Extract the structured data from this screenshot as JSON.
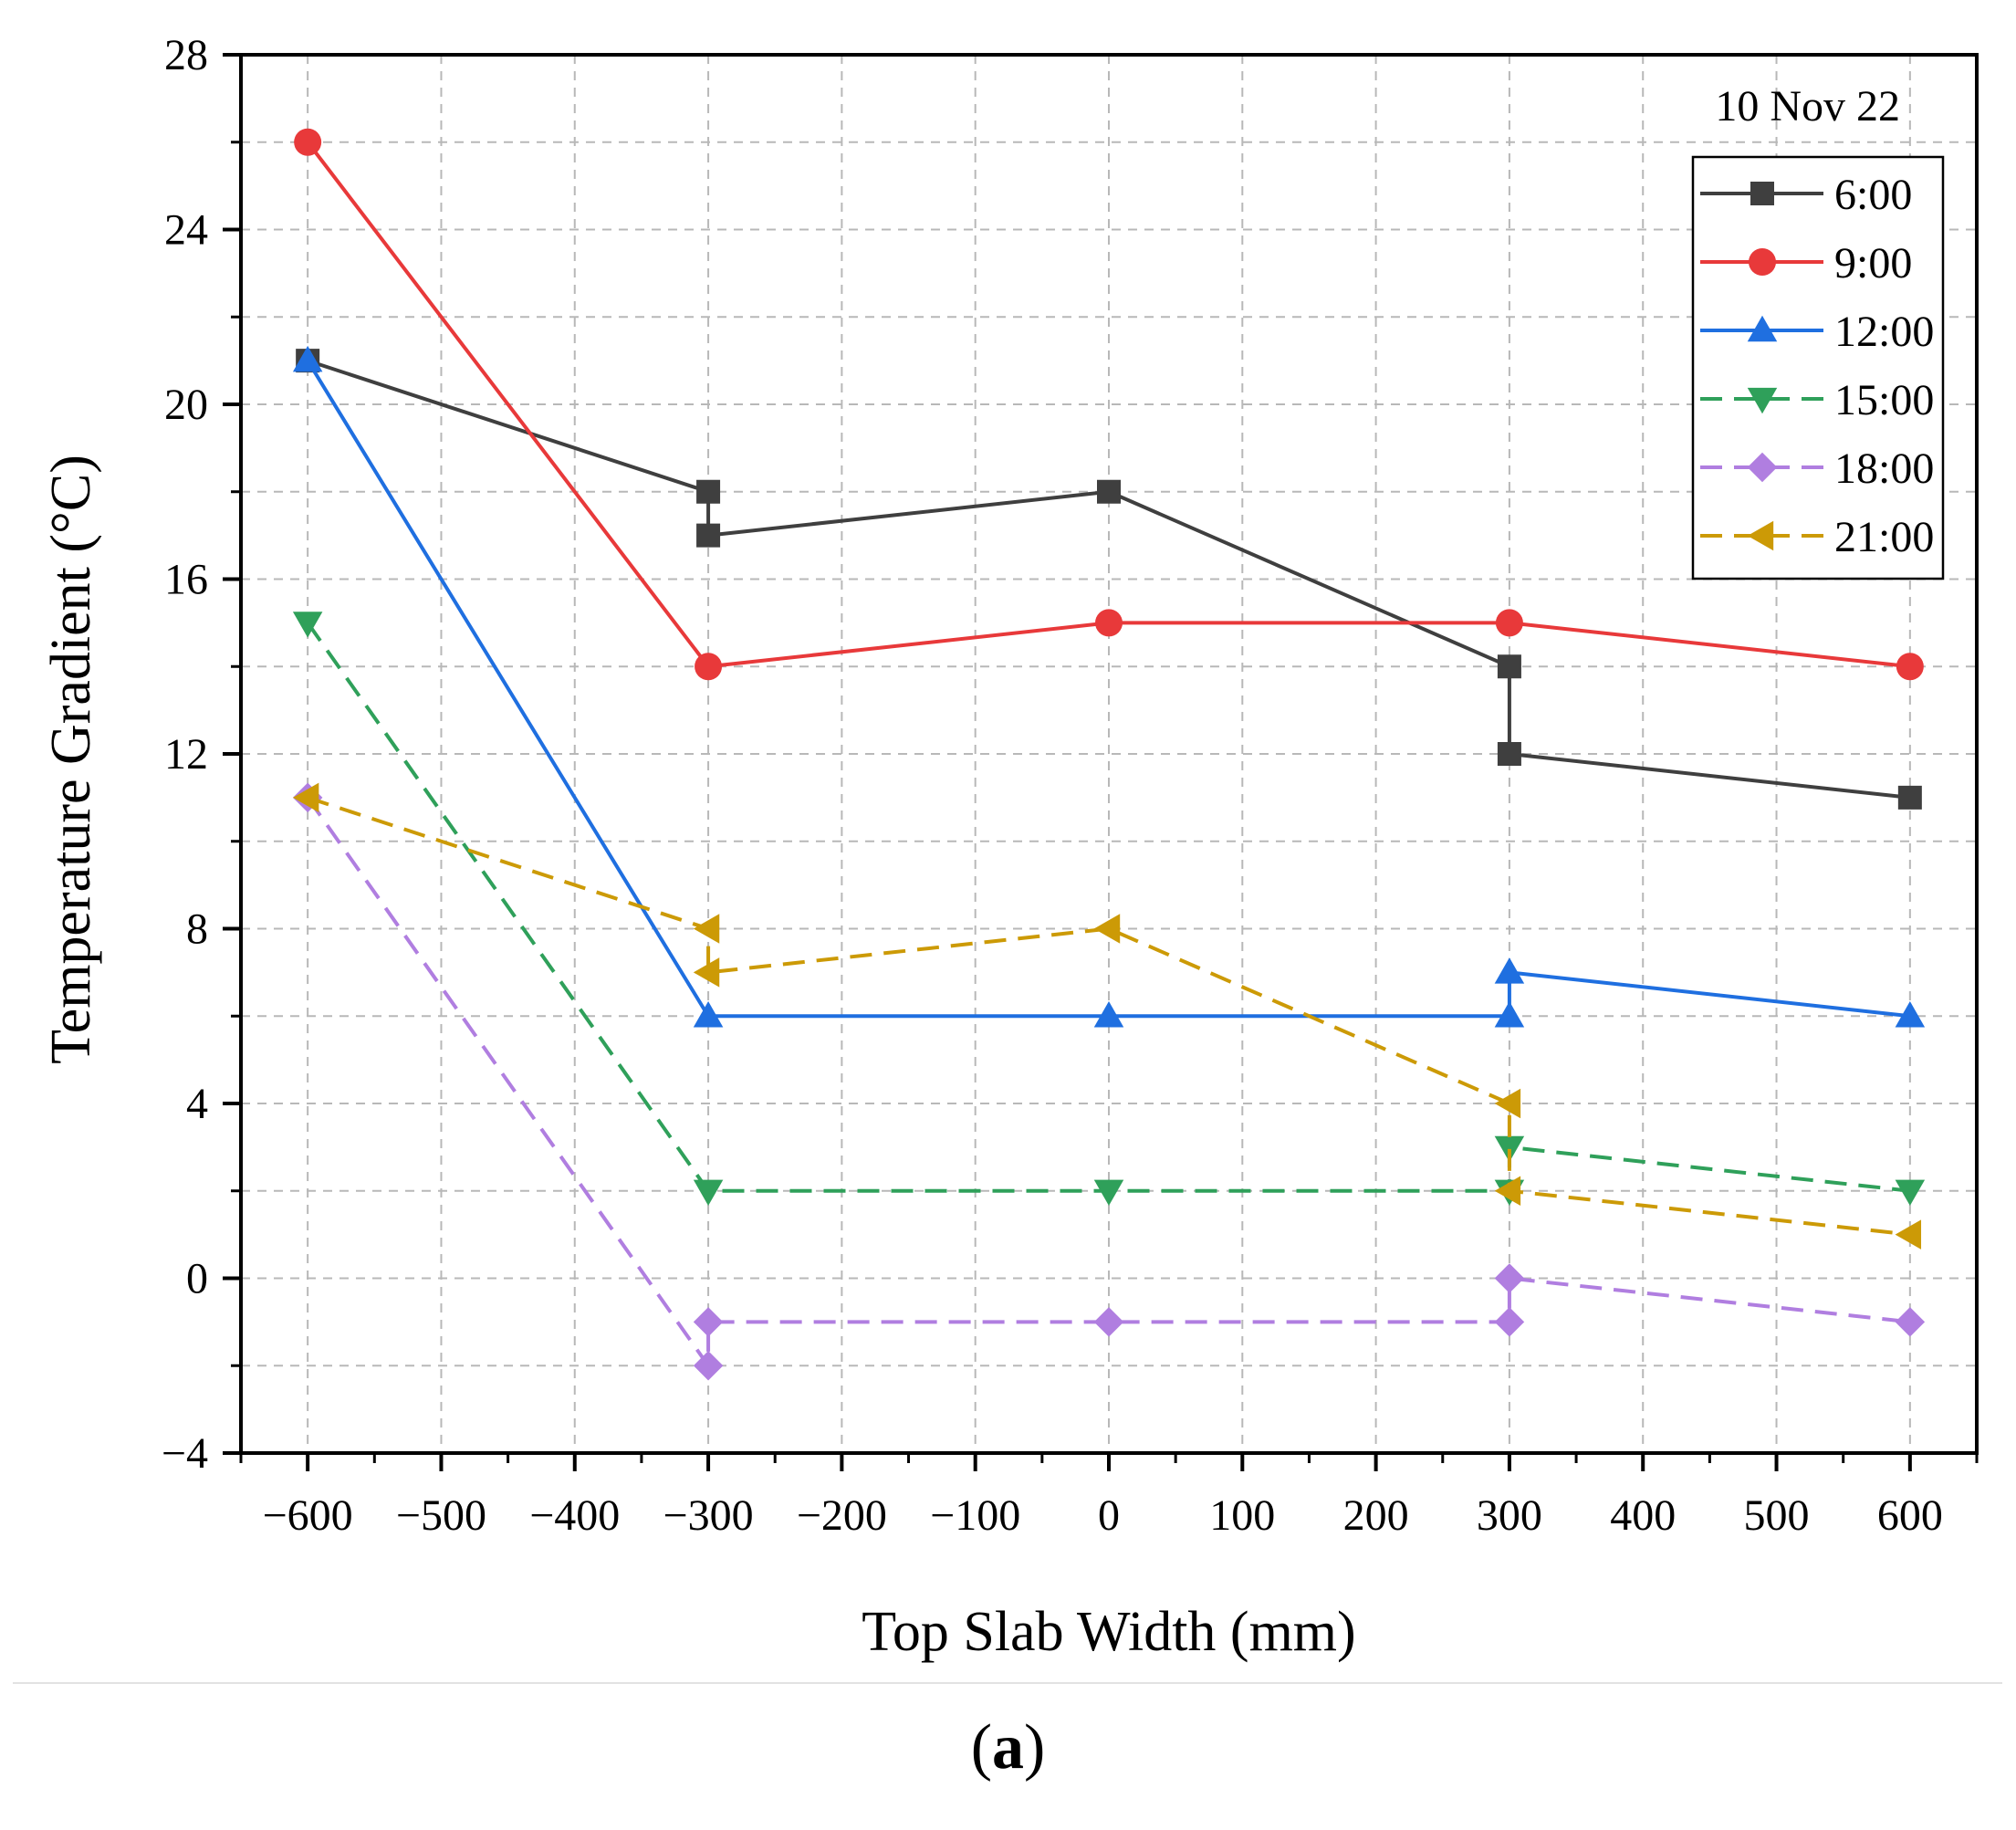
{
  "chart_data": {
    "type": "line",
    "annotation": "10 Nov 22",
    "xlabel": "Top Slab Width (mm)",
    "ylabel": "Temperature Gradient (°C)",
    "xlim": [
      -650,
      650
    ],
    "ylim": [
      -4,
      28
    ],
    "xticks": [
      -600,
      -500,
      -400,
      -300,
      -200,
      -100,
      0,
      100,
      200,
      300,
      400,
      500,
      600
    ],
    "xtick_labels": [
      "−600",
      "−500",
      "−400",
      "−300",
      "−200",
      "−100",
      "0",
      "100",
      "200",
      "300",
      "400",
      "500",
      "600"
    ],
    "yticks": [
      -4,
      0,
      4,
      8,
      12,
      16,
      20,
      24,
      28
    ],
    "ytick_labels": [
      "−4",
      "0",
      "4",
      "8",
      "12",
      "16",
      "20",
      "24",
      "28"
    ],
    "grid": true,
    "legend_position": "top-right",
    "series": [
      {
        "name": "6:00",
        "color": "#3f3f3f",
        "dashed": false,
        "marker": "square",
        "points": [
          [
            -600,
            21
          ],
          [
            -300,
            18
          ],
          [
            -300,
            17
          ],
          [
            0,
            18
          ],
          [
            300,
            14
          ],
          [
            300,
            12
          ],
          [
            600,
            11
          ]
        ]
      },
      {
        "name": "9:00",
        "color": "#e8393a",
        "dashed": false,
        "marker": "circle",
        "points": [
          [
            -600,
            26
          ],
          [
            -300,
            14
          ],
          [
            0,
            15
          ],
          [
            300,
            15
          ],
          [
            600,
            14
          ]
        ]
      },
      {
        "name": "12:00",
        "color": "#1f6fe0",
        "dashed": false,
        "marker": "triangle-up",
        "points": [
          [
            -600,
            21
          ],
          [
            -300,
            6
          ],
          [
            0,
            6
          ],
          [
            300,
            6
          ],
          [
            300,
            7
          ],
          [
            600,
            6
          ]
        ]
      },
      {
        "name": "15:00",
        "color": "#2fa05a",
        "dashed": true,
        "marker": "triangle-down",
        "points": [
          [
            -600,
            15
          ],
          [
            -300,
            2
          ],
          [
            0,
            2
          ],
          [
            300,
            2
          ],
          [
            300,
            3
          ],
          [
            600,
            2
          ]
        ]
      },
      {
        "name": "18:00",
        "color": "#b07ee0",
        "dashed": true,
        "marker": "diamond",
        "points": [
          [
            -600,
            11
          ],
          [
            -300,
            -2
          ],
          [
            -300,
            -1
          ],
          [
            0,
            -1
          ],
          [
            300,
            -1
          ],
          [
            300,
            0
          ],
          [
            600,
            -1
          ]
        ]
      },
      {
        "name": "21:00",
        "color": "#cc9a06",
        "dashed": true,
        "marker": "triangle-left",
        "points": [
          [
            -600,
            11
          ],
          [
            -300,
            8
          ],
          [
            -300,
            7
          ],
          [
            0,
            8
          ],
          [
            300,
            4
          ],
          [
            300,
            2
          ],
          [
            600,
            1
          ]
        ]
      }
    ]
  },
  "caption": {
    "open": "(",
    "label": "a",
    "close": ")"
  }
}
